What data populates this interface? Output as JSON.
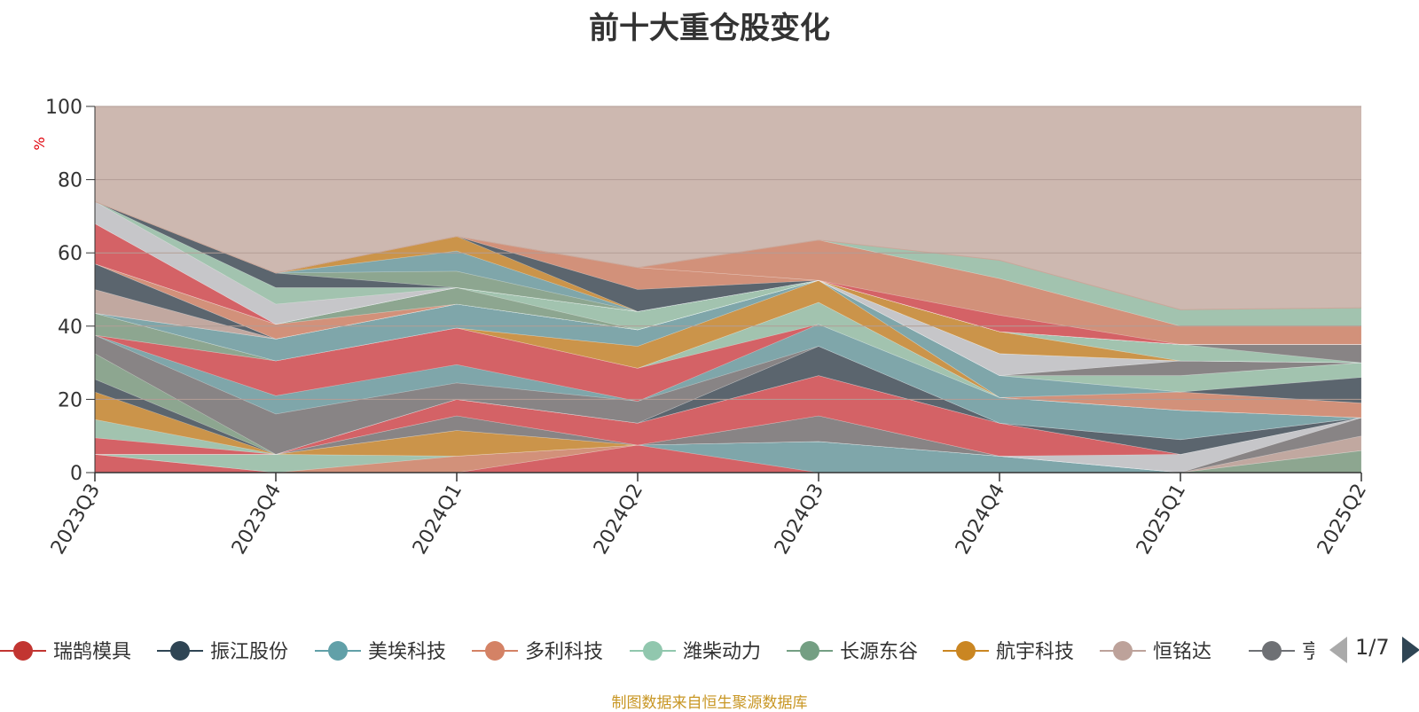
{
  "chart_data": {
    "type": "area",
    "title": "前十大重仓股变化",
    "ylabel": "%",
    "ylim": [
      0,
      100
    ],
    "yticks": [
      0,
      20,
      40,
      60,
      80,
      100
    ],
    "categories": [
      "2023Q3",
      "2023Q4",
      "2024Q1",
      "2024Q2",
      "2024Q3",
      "2024Q4",
      "2025Q1",
      "2025Q2"
    ],
    "grid": true,
    "stacked": true,
    "layers": [
      {
        "color": "#d7414a",
        "values": [
          5,
          0,
          0,
          7.5,
          0,
          0,
          0,
          0
        ]
      },
      {
        "color": "#c4ccd3",
        "values": [
          0,
          0,
          0,
          0,
          0,
          0,
          0,
          0
        ]
      },
      {
        "color": "#61a0a8",
        "values": [
          0,
          0,
          0,
          0,
          8.5,
          4.5,
          0,
          0
        ]
      },
      {
        "color": "#2f4554",
        "values": [
          0,
          0,
          0,
          0,
          0,
          0,
          0,
          0
        ]
      },
      {
        "color": "#2f4554",
        "values": [
          0,
          0,
          0,
          0,
          0,
          0,
          0,
          0
        ]
      },
      {
        "color": "#d48265",
        "values": [
          0,
          0,
          4.5,
          0,
          0,
          0,
          0,
          0
        ]
      },
      {
        "color": "#91c7ae",
        "values": [
          0,
          5,
          0,
          0,
          0,
          0,
          0,
          0
        ]
      },
      {
        "color": "#749f83",
        "values": [
          0,
          0,
          0,
          0,
          0,
          0,
          0,
          6
        ]
      },
      {
        "color": "#ca8622",
        "values": [
          0,
          0,
          7,
          0,
          0,
          0,
          0,
          0
        ]
      },
      {
        "color": "#bda29a",
        "values": [
          0,
          0,
          0,
          0,
          0,
          0,
          0,
          4
        ]
      },
      {
        "color": "#6e7074",
        "values": [
          0,
          0,
          4,
          0,
          7,
          0,
          0,
          5
        ]
      },
      {
        "color": "#546570",
        "values": [
          0,
          0,
          0,
          0,
          0,
          0,
          0,
          0
        ]
      },
      {
        "color": "#c4ccd3",
        "values": [
          0,
          0,
          0,
          0,
          0,
          0,
          5,
          0
        ]
      },
      {
        "color": "#d7414a",
        "values": [
          4.5,
          0,
          4.5,
          6,
          11,
          9,
          0,
          0
        ]
      },
      {
        "color": "#91c7ae",
        "values": [
          5,
          0,
          0,
          0,
          0,
          0,
          0,
          0
        ]
      },
      {
        "color": "#ca8622",
        "values": [
          7.5,
          0,
          0,
          0,
          0,
          0,
          0,
          0
        ]
      },
      {
        "color": "#2f4554",
        "values": [
          3.5,
          0,
          0,
          0,
          8,
          0,
          4,
          0
        ]
      },
      {
        "color": "#749f83",
        "values": [
          7,
          0,
          0,
          0,
          0,
          0,
          0,
          0
        ]
      },
      {
        "color": "#6e7074",
        "values": [
          5,
          11,
          4.5,
          6,
          0,
          0,
          0,
          0
        ]
      },
      {
        "color": "#61a0a8",
        "values": [
          0,
          5,
          5,
          0,
          6,
          7,
          8,
          0
        ]
      },
      {
        "color": "#bda29a",
        "values": [
          0,
          0,
          0,
          0,
          0,
          0,
          0,
          0
        ]
      },
      {
        "color": "#d7414a",
        "values": [
          0,
          9.5,
          10,
          9,
          0,
          0,
          0,
          0
        ]
      },
      {
        "color": "#91c7ae",
        "values": [
          0,
          0,
          0,
          0,
          6,
          0,
          0,
          0
        ]
      },
      {
        "color": "#749f83",
        "values": [
          6,
          0,
          0,
          0,
          0,
          0,
          0,
          0
        ]
      },
      {
        "color": "#ca8622",
        "values": [
          0,
          0,
          0,
          6,
          6,
          0,
          0,
          0
        ]
      },
      {
        "color": "#d48265",
        "values": [
          0,
          0,
          0,
          0,
          0,
          0,
          5,
          4
        ]
      },
      {
        "color": "#61a0a8",
        "values": [
          0,
          6,
          6.5,
          4.5,
          0,
          6,
          0,
          0
        ]
      },
      {
        "color": "#2f4554",
        "values": [
          0,
          0,
          0,
          0,
          0,
          0,
          0,
          7
        ]
      },
      {
        "color": "#91c7ae",
        "values": [
          0,
          0,
          0,
          0,
          0,
          0,
          4.5,
          4
        ]
      },
      {
        "color": "#bda29a",
        "values": [
          6.5,
          0,
          0,
          0,
          0,
          0,
          0,
          0
        ]
      },
      {
        "color": "#6e7074",
        "values": [
          0,
          0,
          0,
          0,
          0,
          0,
          4,
          0
        ]
      },
      {
        "color": "#749f83",
        "values": [
          0,
          0,
          0,
          0,
          0,
          0,
          0,
          0
        ]
      },
      {
        "color": "#2f4554",
        "values": [
          7,
          0,
          0,
          0,
          0,
          0,
          0,
          0
        ]
      },
      {
        "color": "#c4ccd3",
        "values": [
          0,
          0,
          0,
          0,
          0,
          6,
          0,
          0
        ]
      },
      {
        "color": "#d48265",
        "values": [
          0,
          4,
          0,
          0,
          0,
          0,
          0,
          0
        ]
      },
      {
        "color": "#749f83",
        "values": [
          0,
          0,
          4.5,
          0,
          0,
          0,
          0,
          0
        ]
      },
      {
        "color": "#91c7ae",
        "values": [
          0,
          0,
          0,
          5,
          0,
          0,
          0,
          0
        ]
      },
      {
        "color": "#ca8622",
        "values": [
          0,
          0,
          0,
          0,
          0,
          6,
          0,
          0
        ]
      },
      {
        "color": "#d7414a",
        "values": [
          11,
          0,
          0,
          0,
          0,
          0,
          0,
          0
        ]
      },
      {
        "color": "#91c7ae",
        "values": [
          0,
          0,
          0,
          0,
          0,
          0,
          4.5,
          0
        ]
      },
      {
        "color": "#6e7074",
        "values": [
          0,
          0,
          0,
          0,
          0,
          0,
          0,
          5
        ]
      },
      {
        "color": "#c4ccd3",
        "values": [
          6,
          5.5,
          0,
          0,
          0,
          0,
          0,
          0
        ]
      },
      {
        "color": "#91c7ae",
        "values": [
          0,
          4.5,
          0,
          0,
          0,
          0,
          0,
          0
        ]
      },
      {
        "color": "#2f4554",
        "values": [
          0,
          4,
          0,
          0,
          0,
          0,
          0,
          0
        ]
      },
      {
        "color": "#749f83",
        "values": [
          0,
          0,
          4.5,
          0,
          0,
          0,
          0,
          0
        ]
      },
      {
        "color": "#61a0a8",
        "values": [
          0,
          0,
          5.5,
          0,
          0,
          0,
          0,
          0
        ]
      },
      {
        "color": "#ca8622",
        "values": [
          0,
          0,
          4,
          0,
          0,
          0,
          0,
          0
        ]
      },
      {
        "color": "#2f4554",
        "values": [
          0,
          0,
          0,
          6,
          0,
          0,
          0,
          0
        ]
      },
      {
        "color": "#d48265",
        "values": [
          0,
          0,
          0,
          6,
          0,
          0,
          0,
          0
        ]
      },
      {
        "color": "#d7414a",
        "values": [
          0,
          0,
          0,
          0,
          0,
          4.5,
          0,
          0
        ]
      },
      {
        "color": "#d48265",
        "values": [
          0,
          0,
          0,
          0,
          11,
          10,
          5,
          5
        ]
      },
      {
        "color": "#91c7ae",
        "values": [
          0,
          0,
          0,
          0,
          0,
          5,
          4.5,
          5
        ]
      },
      {
        "color": "#c4ccd3",
        "values": [
          0,
          0,
          0,
          0,
          0,
          0,
          0,
          0
        ]
      },
      {
        "color": "#bda29a",
        "values": [
          0,
          0,
          0,
          0,
          0,
          0,
          0,
          0
        ]
      }
    ],
    "top_band_color": "#cdb8b0",
    "legend": [
      {
        "name": "瑞鹄模具",
        "color": "#c23531"
      },
      {
        "name": "振江股份",
        "color": "#2f4554"
      },
      {
        "name": "美埃科技",
        "color": "#61a0a8"
      },
      {
        "name": "多利科技",
        "color": "#d48265"
      },
      {
        "name": "潍柴动力",
        "color": "#91c7ae"
      },
      {
        "name": "长源东谷",
        "color": "#749f83"
      },
      {
        "name": "航宇科技",
        "color": "#ca8622"
      },
      {
        "name": "恒铭达",
        "color": "#bda29a"
      },
      {
        "name": "亨通",
        "color": "#6e7074"
      }
    ],
    "legend_page": "1/7"
  },
  "footer_note": "制图数据来自恒生聚源数据库"
}
